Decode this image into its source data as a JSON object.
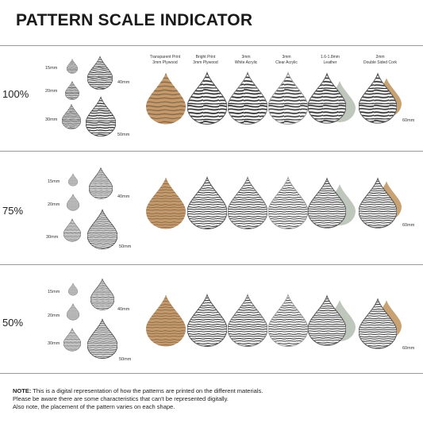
{
  "title": "PATTERN SCALE INDICATOR",
  "rows": [
    {
      "percent": "100%",
      "sizes": [
        "15mm",
        "20mm",
        "30mm",
        "40mm",
        "50mm"
      ],
      "size60": "60mm"
    },
    {
      "percent": "75%",
      "sizes": [
        "15mm",
        "20mm",
        "30mm",
        "40mm",
        "50mm"
      ],
      "size60": "60mm"
    },
    {
      "percent": "50%",
      "sizes": [
        "15mm",
        "20mm",
        "30mm",
        "40mm",
        "50mm"
      ],
      "size60": "60mm"
    }
  ],
  "materials": [
    {
      "line1": "Transparent Print",
      "line2": "3mm Plywood"
    },
    {
      "line1": "Bright Print",
      "line2": "3mm Plywood"
    },
    {
      "line1": "3mm",
      "line2": "White Acrylic"
    },
    {
      "line1": "3mm",
      "line2": "Clear Acrylic"
    },
    {
      "line1": "1.6-1.8mm",
      "line2": "Leather"
    },
    {
      "line1": "2mm",
      "line2": "Double Sided Cork"
    }
  ],
  "note": {
    "label": "NOTE:",
    "line1": " This is a digital representation of how the patterns are printed on the different materials.",
    "line2": "Please be aware there are some characteristics that can't be represented digitally.",
    "line3": "Also note, the placement of the pattern varies on each shape."
  },
  "colors": {
    "stripe_dark": "#2b2b2b",
    "stripe_light": "#f2f2f2",
    "plywood_light": "#c49a6c",
    "plywood_dark": "#8a6a48",
    "leather_back": "#bfc7bd",
    "cork_back": "#c8a273"
  }
}
